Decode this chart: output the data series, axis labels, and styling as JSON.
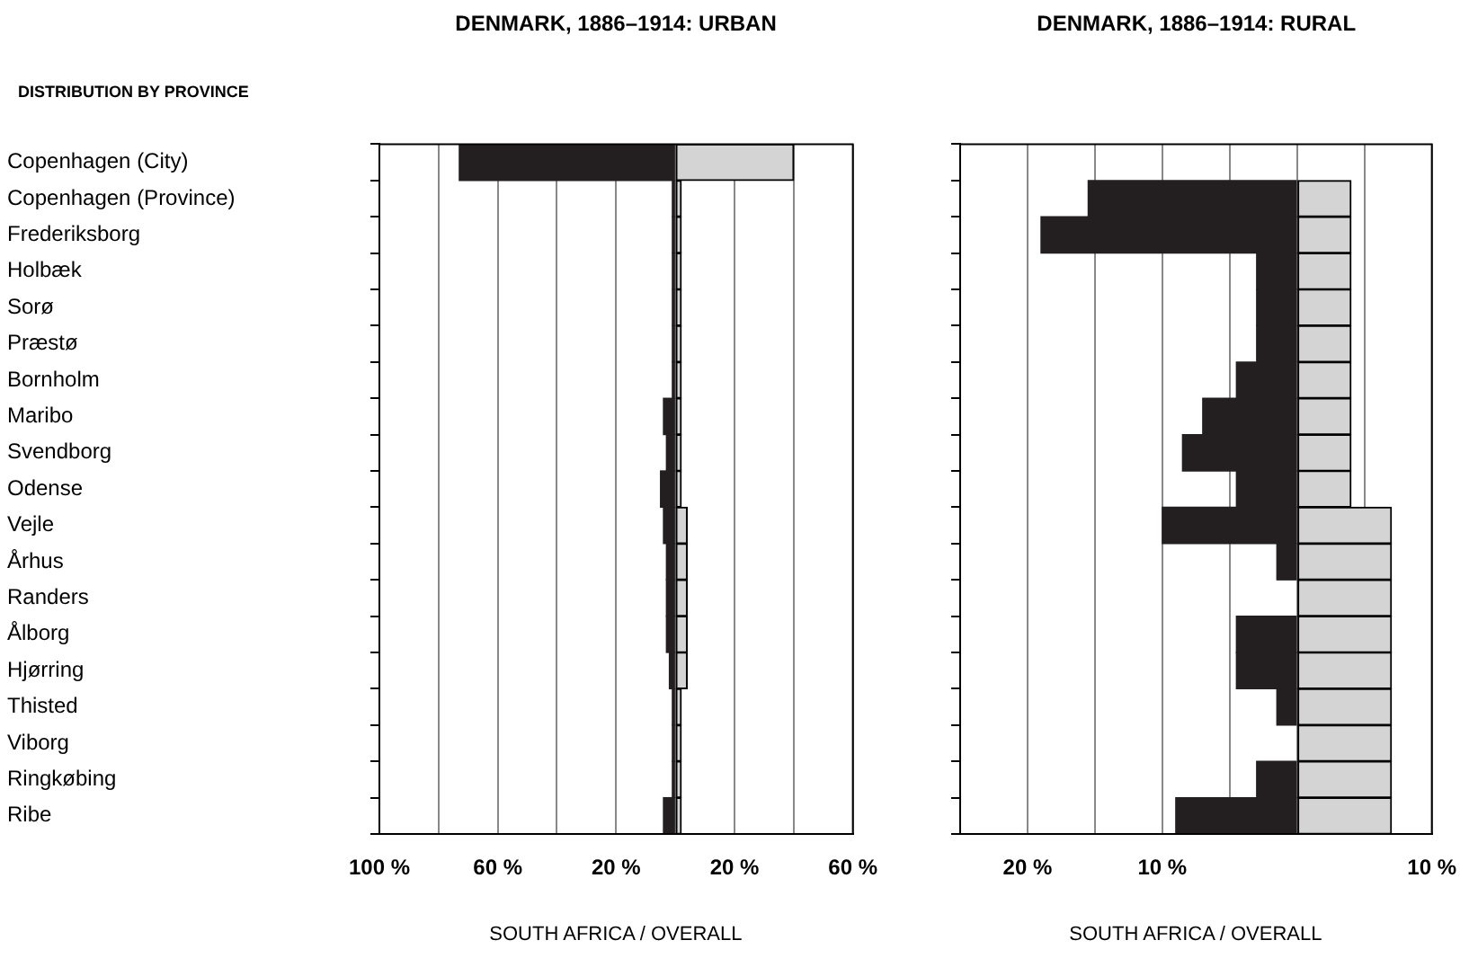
{
  "chart_data": [
    {
      "type": "bar",
      "title": "DENMARK, 1886–1914: URBAN",
      "subtitle": "DISTRIBUTION BY PROVINCE",
      "xlabel": "SOUTH AFRICA  /  OVERALL",
      "orientation": "horizontal",
      "stacked": true,
      "grid": "x",
      "legend": false,
      "categories": [
        "Copenhagen (City)",
        "Copenhagen (Province)",
        "Frederiksborg",
        "Holbæk",
        "Sorø",
        "Præstø",
        "Bornholm",
        "Maribo",
        "Svendborg",
        "Odense",
        "Vejle",
        "Århus",
        "Randers",
        "Ålborg",
        "Hjørring",
        "Thisted",
        "Viborg",
        "Ringkøbing",
        "Ribe"
      ],
      "series": [
        {
          "color": "#231f20",
          "values": [
            -73,
            -1,
            -1,
            -1,
            -1,
            -1,
            -1,
            -4,
            -3,
            -5,
            -4,
            -3,
            -3,
            -3,
            -2,
            -1,
            -1,
            -1,
            -4
          ]
        },
        {
          "color": "#d4d4d4",
          "values": [
            40,
            2,
            2,
            2,
            2,
            2,
            2,
            2,
            2,
            2,
            4,
            4,
            4,
            4,
            4,
            2,
            2,
            2,
            2
          ]
        }
      ],
      "xlim": [
        -100,
        60
      ],
      "xticks": [
        {
          "value": -100,
          "label": "100 %"
        },
        {
          "value": -80,
          "label": null
        },
        {
          "value": -60,
          "label": "60 %"
        },
        {
          "value": -40,
          "label": null
        },
        {
          "value": -20,
          "label": "20 %"
        },
        {
          "value": 0,
          "label": null
        },
        {
          "value": 20,
          "label": "20 %"
        },
        {
          "value": 40,
          "label": null
        },
        {
          "value": 60,
          "label": "60 %"
        }
      ]
    },
    {
      "type": "bar",
      "title": "DENMARK, 1886–1914: RURAL",
      "xlabel": "SOUTH AFRICA  /  OVERALL",
      "orientation": "horizontal",
      "stacked": true,
      "grid": "x",
      "legend": false,
      "categories": [
        null,
        null,
        null,
        null,
        null,
        null,
        null,
        null,
        null,
        null,
        null,
        null,
        null,
        null,
        null,
        null,
        null,
        null,
        null
      ],
      "series": [
        {
          "color": "#231f20",
          "values": [
            null,
            -15.5,
            -19,
            -3,
            -3,
            -3,
            -4.5,
            -7,
            -8.5,
            -4.5,
            -10,
            -1.5,
            null,
            -4.5,
            -4.5,
            -1.5,
            null,
            -3,
            -9
          ]
        },
        {
          "color": "#d4d4d4",
          "values": [
            null,
            4,
            4,
            4,
            4,
            4,
            4,
            4,
            4,
            4,
            7,
            7,
            7,
            7,
            7,
            7,
            7,
            7,
            7
          ]
        }
      ],
      "xlim": [
        -25,
        10
      ],
      "xticks": [
        {
          "value": -20,
          "label": "20 %"
        },
        {
          "value": -15,
          "label": null
        },
        {
          "value": -10,
          "label": "10 %"
        },
        {
          "value": -5,
          "label": null
        },
        {
          "value": 0,
          "label": null
        },
        {
          "value": 5,
          "label": null
        },
        {
          "value": 10,
          "label": "10 %"
        }
      ]
    }
  ]
}
